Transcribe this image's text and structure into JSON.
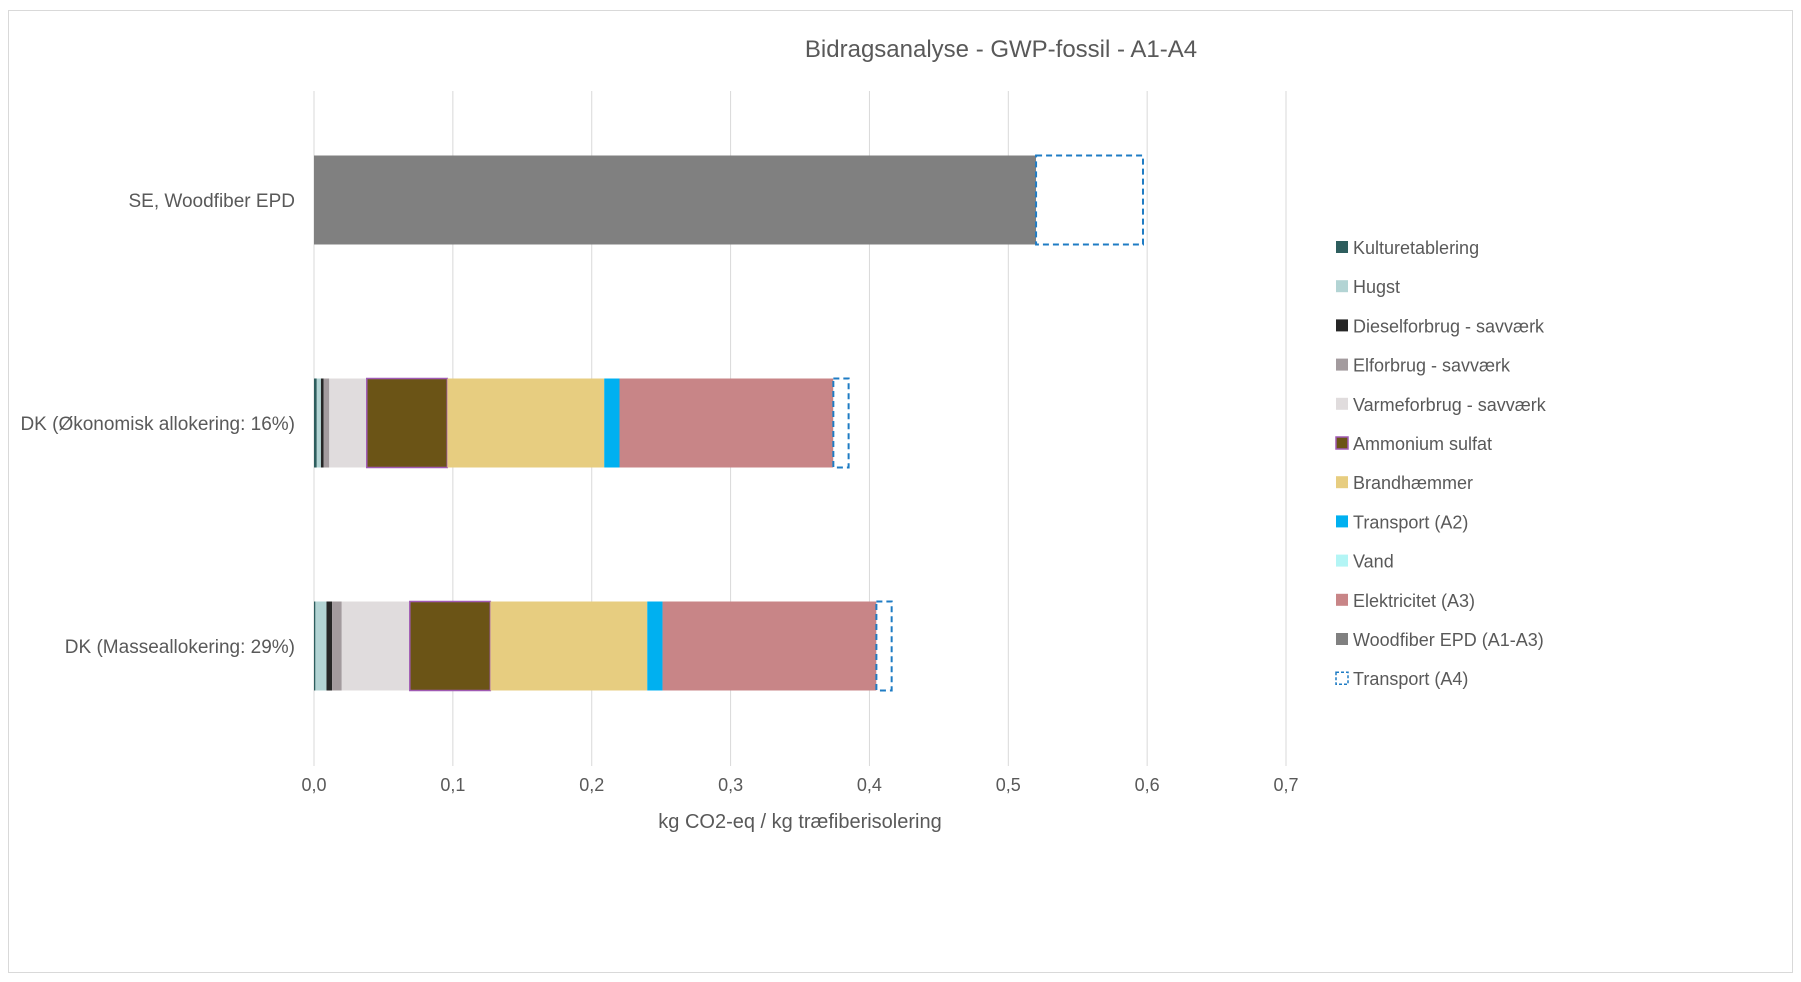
{
  "chart_data": {
    "type": "bar",
    "orientation": "horizontal",
    "stacked": true,
    "title": "Bidragsanalyse - GWP-fossil - A1-A4",
    "xlabel": "kg CO2-eq / kg træfiberisolering",
    "ylabel": "",
    "xlim": [
      0,
      0.7
    ],
    "xticks": [
      0.0,
      0.1,
      0.2,
      0.3,
      0.4,
      0.5,
      0.6,
      0.7
    ],
    "xtick_labels": [
      "0,0",
      "0,1",
      "0,2",
      "0,3",
      "0,4",
      "0,5",
      "0,6",
      "0,7"
    ],
    "grid": true,
    "legend_position": "right",
    "categories": [
      "SE, Woodfiber EPD",
      "DK (Økonomisk allokering: 16%)",
      "DK (Masseallokering: 29%)"
    ],
    "series": [
      {
        "name": "Kulturetablering",
        "color": "#2e5e5e",
        "style": "solid",
        "values": [
          0,
          0.002,
          0.001
        ]
      },
      {
        "name": "Hugst",
        "color": "#b3d4d4",
        "style": "solid",
        "values": [
          0,
          0.003,
          0.008
        ]
      },
      {
        "name": "Dieselforbrug - savværk",
        "color": "#262626",
        "style": "solid",
        "values": [
          0,
          0.002,
          0.004
        ]
      },
      {
        "name": "Elforbrug - savværk",
        "color": "#a39b9e",
        "style": "solid",
        "values": [
          0,
          0.004,
          0.007
        ]
      },
      {
        "name": "Varmeforbrug - savværk",
        "color": "#e0dcdd",
        "style": "solid",
        "values": [
          0,
          0.027,
          0.049
        ]
      },
      {
        "name": "Ammonium sulfat",
        "color": "#6b5416",
        "style": "outlined",
        "stroke": "#a05ab4",
        "values": [
          0,
          0.058,
          0.058
        ]
      },
      {
        "name": "Brandhæmmer",
        "color": "#e7cd80",
        "style": "solid",
        "values": [
          0,
          0.113,
          0.113
        ]
      },
      {
        "name": "Transport (A2)",
        "color": "#00b0f0",
        "style": "solid",
        "values": [
          0,
          0.011,
          0.011
        ]
      },
      {
        "name": "Vand",
        "color": "#b3f5f5",
        "style": "solid",
        "values": [
          0,
          0.0,
          0.0
        ]
      },
      {
        "name": "Elektricitet (A3)",
        "color": "#c88587",
        "style": "solid",
        "values": [
          0,
          0.154,
          0.154
        ]
      },
      {
        "name": "Woodfiber EPD (A1-A3)",
        "color": "#808080",
        "style": "solid",
        "values": [
          0.52,
          0,
          0
        ]
      },
      {
        "name": "Transport (A4)",
        "color": "#ffffff",
        "style": "dashed",
        "stroke": "#1f7cc4",
        "values": [
          0.077,
          0.011,
          0.011
        ]
      }
    ]
  }
}
